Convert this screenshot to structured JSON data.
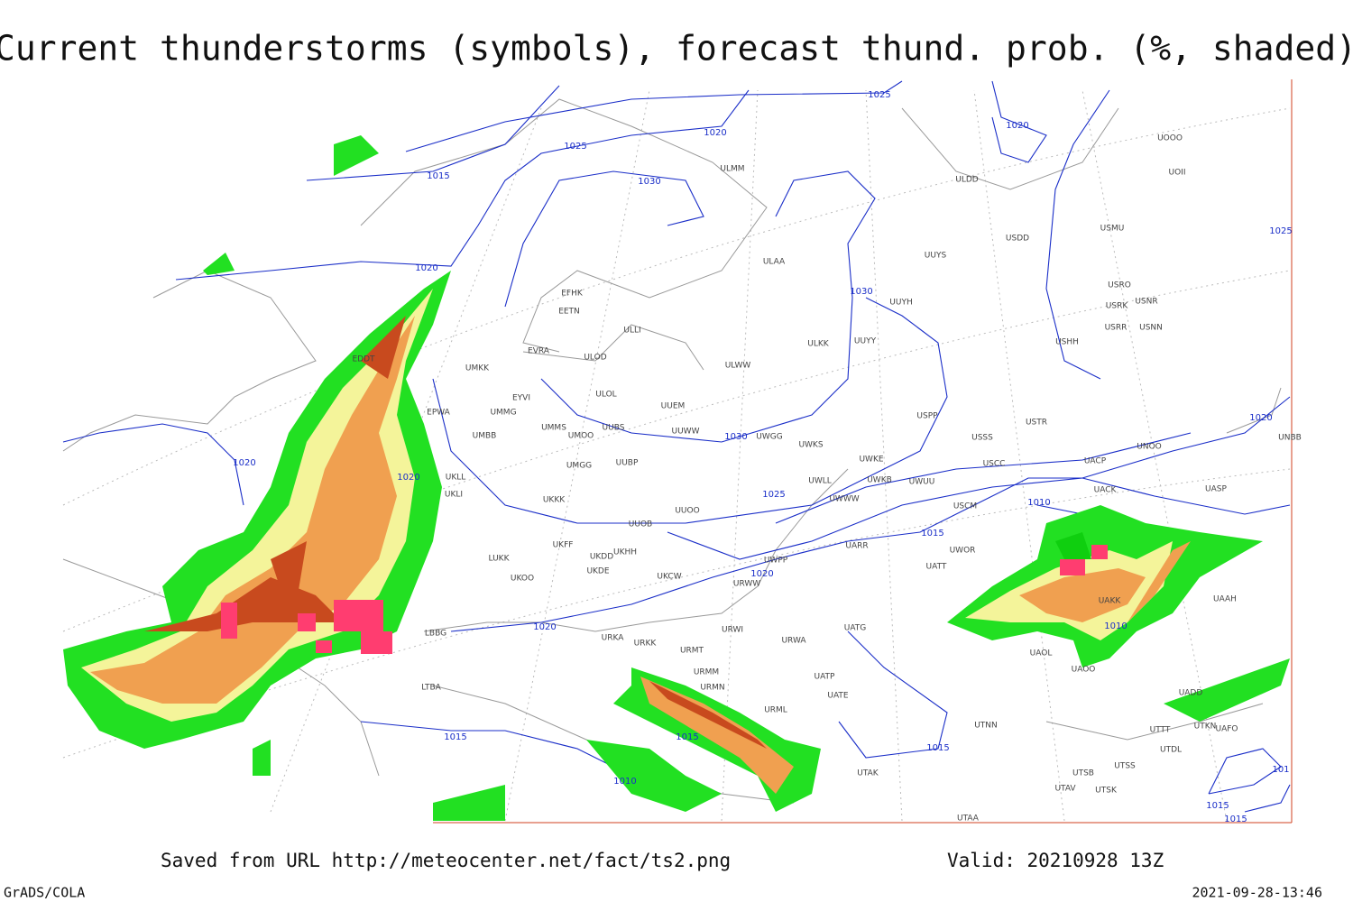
{
  "header": {
    "title": "Current thunderstorms (symbols), forecast thund. prob. (%, shaded)"
  },
  "isobar_labels": [
    "1025",
    "1020",
    "1025",
    "1015",
    "1030",
    "1020",
    "1020",
    "1030",
    "1025",
    "1020",
    "1030",
    "1020",
    "1020",
    "1025",
    "1010",
    "1015",
    "1020",
    "1020",
    "1010",
    "1015",
    "1015",
    "1015",
    "1010",
    "1015",
    "1015",
    "101"
  ],
  "stations": [
    "EFHK",
    "EETN",
    "EVRA",
    "ULOD",
    "ULOL",
    "UMKK",
    "EYVI",
    "UMMG",
    "EPWA",
    "UMBB",
    "UMMS",
    "UMOO",
    "UUBS",
    "UUEM",
    "UUWW",
    "ULWW",
    "ULLI",
    "ULKK",
    "UUYY",
    "UUYH",
    "ULMM",
    "ULAA",
    "UUYS",
    "ULDD",
    "USDD",
    "USMU",
    "UOII",
    "UOOO",
    "USRO",
    "USRK",
    "USNR",
    "USRR",
    "USNN",
    "USHH",
    "USPP",
    "USTR",
    "USSS",
    "UNOO",
    "UNBB",
    "UWKS",
    "UWKE",
    "UWGG",
    "UWKB",
    "UWUU",
    "USCC",
    "UACP",
    "UACK",
    "UASP",
    "USCM",
    "UATT",
    "UWOR",
    "UARR",
    "UWWW",
    "UWLL",
    "UUOO",
    "UUOB",
    "UKKK",
    "UUBP",
    "UMGG",
    "UKLL",
    "UKLI",
    "LUKK",
    "UKOO",
    "UKHH",
    "UKDD",
    "UKFF",
    "UKDE",
    "UKCW",
    "UWPP",
    "URWW",
    "URWI",
    "URKA",
    "URKK",
    "URMT",
    "URMM",
    "URMN",
    "URML",
    "URWA",
    "UATG",
    "UATE",
    "UATP",
    "UAOL",
    "UAOO",
    "LBBG",
    "LTBA",
    "UTNN",
    "UTAK",
    "UTSB",
    "UTSS",
    "UTAV",
    "UTSK",
    "UTAA",
    "UTTT",
    "UTDL",
    "UTKN",
    "UAFO",
    "UADD",
    "UAAH",
    "UAKK",
    "EDDT"
  ],
  "footer": {
    "source": "Saved from URL http://meteocenter.net/fact/ts2.png",
    "valid": "Valid: 20210928 13Z",
    "software": "GrADS/COLA",
    "timestamp": "2021-09-28-13:46"
  }
}
